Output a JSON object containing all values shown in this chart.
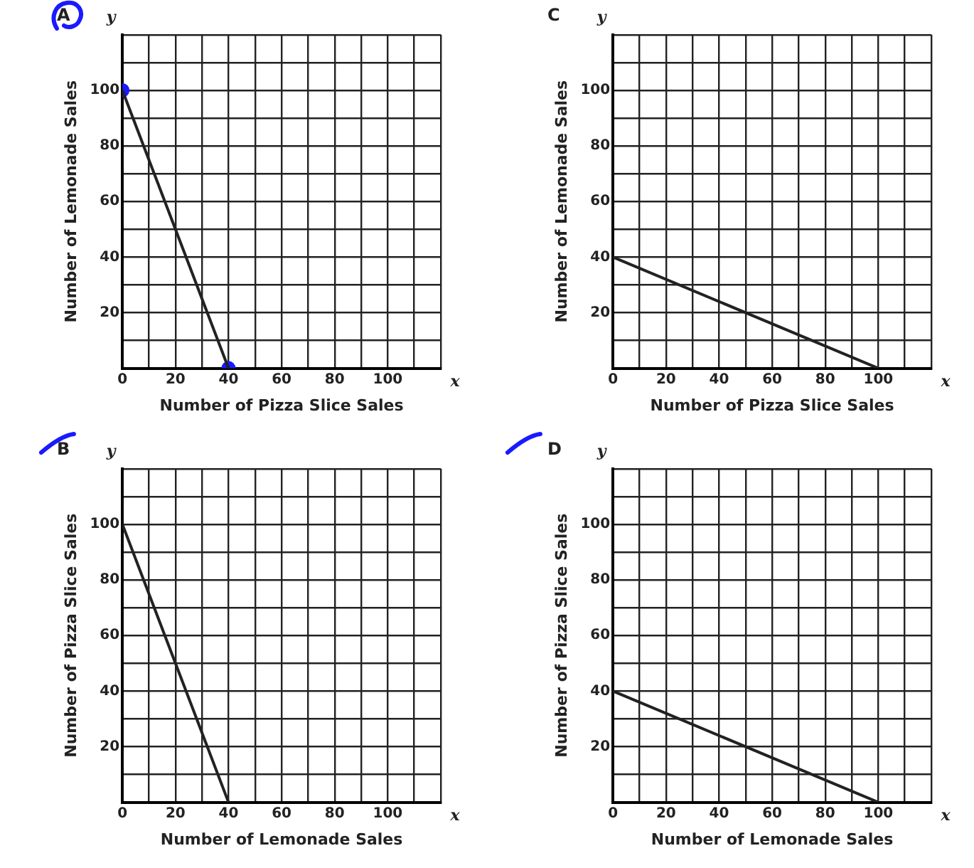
{
  "chart_data": [
    {
      "type": "line",
      "title": "A",
      "xlabel": "Number of Pizza Slice Sales",
      "ylabel": "Number of Lemonade Sales",
      "annotations": [
        "y",
        "x"
      ],
      "xlim": [
        0,
        120
      ],
      "ylim": [
        0,
        120
      ],
      "grid": true,
      "marker": "none",
      "xticks": [
        0,
        {
          "value": 10,
          "label": null
        },
        20,
        {
          "value": 30,
          "label": null
        },
        40,
        {
          "value": 50,
          "label": null
        },
        60,
        {
          "value": 70,
          "label": null
        },
        80,
        {
          "value": 90,
          "label": null
        },
        100,
        {
          "value": 110,
          "label": null
        },
        {
          "value": 120,
          "label": null
        }
      ],
      "yticks": [
        {
          "value": 0,
          "label": null
        },
        {
          "value": 10,
          "label": null
        },
        20,
        {
          "value": 30,
          "label": null
        },
        40,
        {
          "value": 50,
          "label": null
        },
        60,
        {
          "value": 70,
          "label": null
        },
        80,
        {
          "value": 90,
          "label": null
        },
        100,
        {
          "value": 110,
          "label": null
        },
        {
          "value": 120,
          "label": null
        }
      ],
      "series": [
        {
          "color": "#222222",
          "x": [
            0,
            40
          ],
          "values": [
            100,
            0
          ]
        },
        {
          "type": "scatter",
          "color": "#1a1aff",
          "marker": "circle",
          "x": [
            0,
            40
          ],
          "values": [
            100,
            0
          ]
        }
      ]
    },
    {
      "type": "line",
      "title": "C",
      "xlabel": "Number of Pizza Slice Sales",
      "ylabel": "Number of Lemonade Sales",
      "annotations": [
        "y",
        "x"
      ],
      "xlim": [
        0,
        120
      ],
      "ylim": [
        0,
        120
      ],
      "grid": true,
      "marker": "none",
      "xticks": [
        0,
        {
          "value": 10,
          "label": null
        },
        20,
        {
          "value": 30,
          "label": null
        },
        40,
        {
          "value": 50,
          "label": null
        },
        60,
        {
          "value": 70,
          "label": null
        },
        80,
        {
          "value": 90,
          "label": null
        },
        100,
        {
          "value": 110,
          "label": null
        },
        {
          "value": 120,
          "label": null
        }
      ],
      "yticks": [
        {
          "value": 0,
          "label": null
        },
        {
          "value": 10,
          "label": null
        },
        20,
        {
          "value": 30,
          "label": null
        },
        40,
        {
          "value": 50,
          "label": null
        },
        60,
        {
          "value": 70,
          "label": null
        },
        80,
        {
          "value": 90,
          "label": null
        },
        100,
        {
          "value": 110,
          "label": null
        },
        {
          "value": 120,
          "label": null
        }
      ],
      "series": [
        {
          "color": "#222222",
          "x": [
            0,
            100
          ],
          "values": [
            40,
            0
          ]
        }
      ]
    },
    {
      "type": "line",
      "title": "B",
      "xlabel": "Number of Lemonade Sales",
      "ylabel": "Number of Pizza Slice Sales",
      "annotations": [
        "y",
        "x"
      ],
      "xlim": [
        0,
        120
      ],
      "ylim": [
        0,
        120
      ],
      "grid": true,
      "marker": "none",
      "xticks": [
        0,
        {
          "value": 10,
          "label": null
        },
        20,
        {
          "value": 30,
          "label": null
        },
        40,
        {
          "value": 50,
          "label": null
        },
        60,
        {
          "value": 70,
          "label": null
        },
        80,
        {
          "value": 90,
          "label": null
        },
        100,
        {
          "value": 110,
          "label": null
        },
        {
          "value": 120,
          "label": null
        }
      ],
      "yticks": [
        {
          "value": 0,
          "label": null
        },
        {
          "value": 10,
          "label": null
        },
        20,
        {
          "value": 30,
          "label": null
        },
        40,
        {
          "value": 50,
          "label": null
        },
        60,
        {
          "value": 70,
          "label": null
        },
        80,
        {
          "value": 90,
          "label": null
        },
        100,
        {
          "value": 110,
          "label": null
        },
        {
          "value": 120,
          "label": null
        }
      ],
      "series": [
        {
          "color": "#222222",
          "x": [
            0,
            40
          ],
          "values": [
            100,
            0
          ]
        }
      ]
    },
    {
      "type": "line",
      "title": "D",
      "xlabel": "Number of Lemonade Sales",
      "ylabel": "Number of Pizza Slice Sales",
      "annotations": [
        "y",
        "x"
      ],
      "xlim": [
        0,
        120
      ],
      "ylim": [
        0,
        120
      ],
      "grid": true,
      "marker": "none",
      "xticks": [
        0,
        {
          "value": 10,
          "label": null
        },
        20,
        {
          "value": 30,
          "label": null
        },
        40,
        {
          "value": 50,
          "label": null
        },
        60,
        {
          "value": 70,
          "label": null
        },
        80,
        {
          "value": 90,
          "label": null
        },
        100,
        {
          "value": 110,
          "label": null
        },
        {
          "value": 120,
          "label": null
        }
      ],
      "yticks": [
        {
          "value": 0,
          "label": null
        },
        {
          "value": 10,
          "label": null
        },
        20,
        {
          "value": 30,
          "label": null
        },
        40,
        {
          "value": 50,
          "label": null
        },
        60,
        {
          "value": 70,
          "label": null
        },
        80,
        {
          "value": 90,
          "label": null
        },
        100,
        {
          "value": 110,
          "label": null
        },
        {
          "value": 120,
          "label": null
        }
      ],
      "series": [
        {
          "color": "#222222",
          "x": [
            0,
            100
          ],
          "values": [
            40,
            0
          ]
        }
      ]
    }
  ]
}
